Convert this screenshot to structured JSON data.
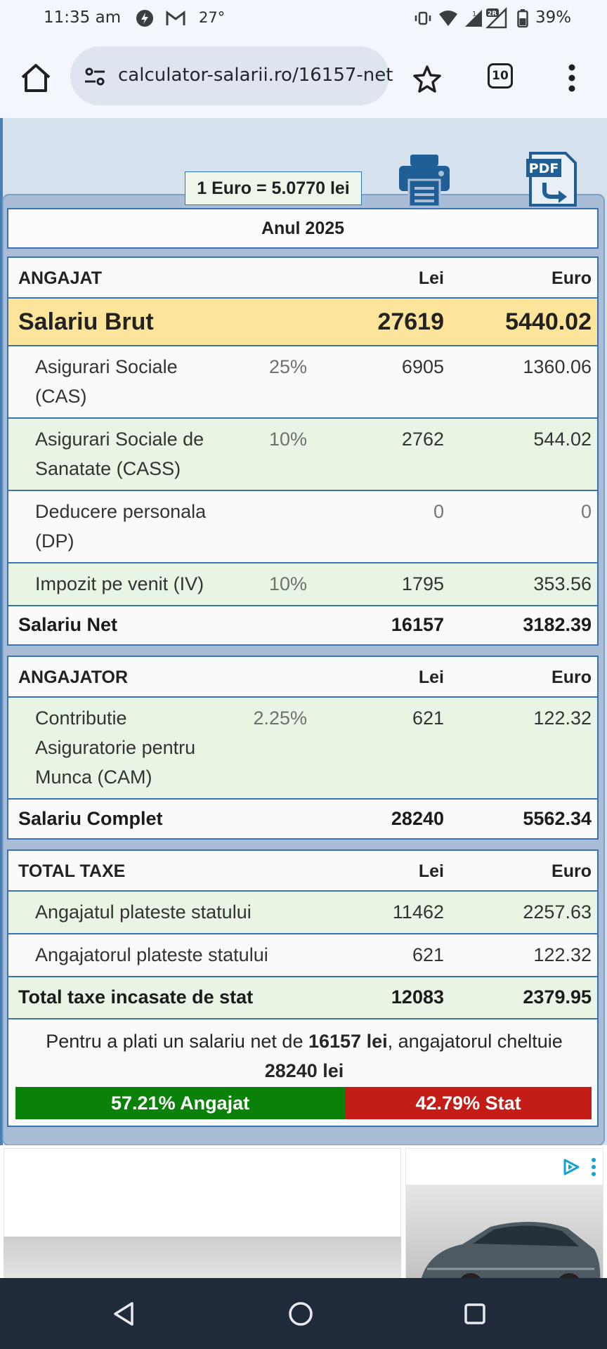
{
  "status_bar": {
    "time": "11:35 am",
    "temperature": "27°",
    "battery": "39%",
    "icons": [
      "threads-icon",
      "gmail-icon",
      "vibrate-icon",
      "wifi-icon",
      "signal-icon",
      "signal-2r-icon",
      "battery-icon"
    ]
  },
  "browser": {
    "url": "calculator-salarii.ro/16157-net",
    "tab_count": "10",
    "icons": [
      "home-icon",
      "site-settings-icon",
      "star-icon",
      "tabs-icon",
      "more-icon"
    ]
  },
  "exchange_rate": "1 Euro = 5.0770 lei",
  "year_label": "Anul 2025",
  "angajat": {
    "header": {
      "label": "ANGAJAT",
      "lei": "Lei",
      "euro": "Euro"
    },
    "brut": {
      "label": "Salariu Brut",
      "lei": "27619",
      "euro": "5440.02"
    },
    "rows": [
      {
        "label_line1": "Asigurari Sociale",
        "label_line2": "(CAS)",
        "pct": "25%",
        "lei": "6905",
        "euro": "1360.06"
      },
      {
        "label_line1": "Asigurari Sociale de",
        "label_line2": "Sanatate (CASS)",
        "pct": "10%",
        "lei": "2762",
        "euro": "544.02"
      },
      {
        "label_line1": "Deducere personala",
        "label_line2": "(DP)",
        "pct": "",
        "lei": "0",
        "euro": "0"
      },
      {
        "label_line1": "Impozit pe venit (IV)",
        "label_line2": "",
        "pct": "10%",
        "lei": "1795",
        "euro": "353.56"
      }
    ],
    "net": {
      "label": "Salariu Net",
      "lei": "16157",
      "euro": "3182.39"
    }
  },
  "angajator": {
    "header": {
      "label": "ANGAJATOR",
      "lei": "Lei",
      "euro": "Euro"
    },
    "cam": {
      "label_line1": "Contributie",
      "label_line2": "Asiguratorie pentru",
      "label_line3": "Munca (CAM)",
      "pct": "2.25%",
      "lei": "621",
      "euro": "122.32"
    },
    "complet": {
      "label": "Salariu Complet",
      "lei": "28240",
      "euro": "5562.34"
    }
  },
  "taxe": {
    "header": {
      "label": "TOTAL TAXE",
      "lei": "Lei",
      "euro": "Euro"
    },
    "rows": [
      {
        "label": "Angajatul plateste statului",
        "lei": "11462",
        "euro": "2257.63"
      },
      {
        "label": "Angajatorul plateste statului",
        "lei": "621",
        "euro": "122.32"
      }
    ],
    "total": {
      "label": "Total taxe incasate de stat",
      "lei": "12083",
      "euro": "2379.95"
    }
  },
  "summary": {
    "prefix": "Pentru a plati un salariu net de",
    "net_amount": "16157 lei",
    "middle": ", angajatorul cheltuie",
    "total_amount": "28240 lei"
  },
  "split_bar": {
    "employee_fraction": 0.5721,
    "employee_label": "57.21% Angajat",
    "state_label": "42.79% Stat",
    "employee_color": "#0a820a",
    "state_color": "#c41c16"
  },
  "ad": {
    "icons": [
      "adchoices-icon",
      "ad-more-icon"
    ]
  },
  "nav_bar": {
    "icons": [
      "back-icon",
      "home-circle-icon",
      "recents-icon"
    ]
  }
}
